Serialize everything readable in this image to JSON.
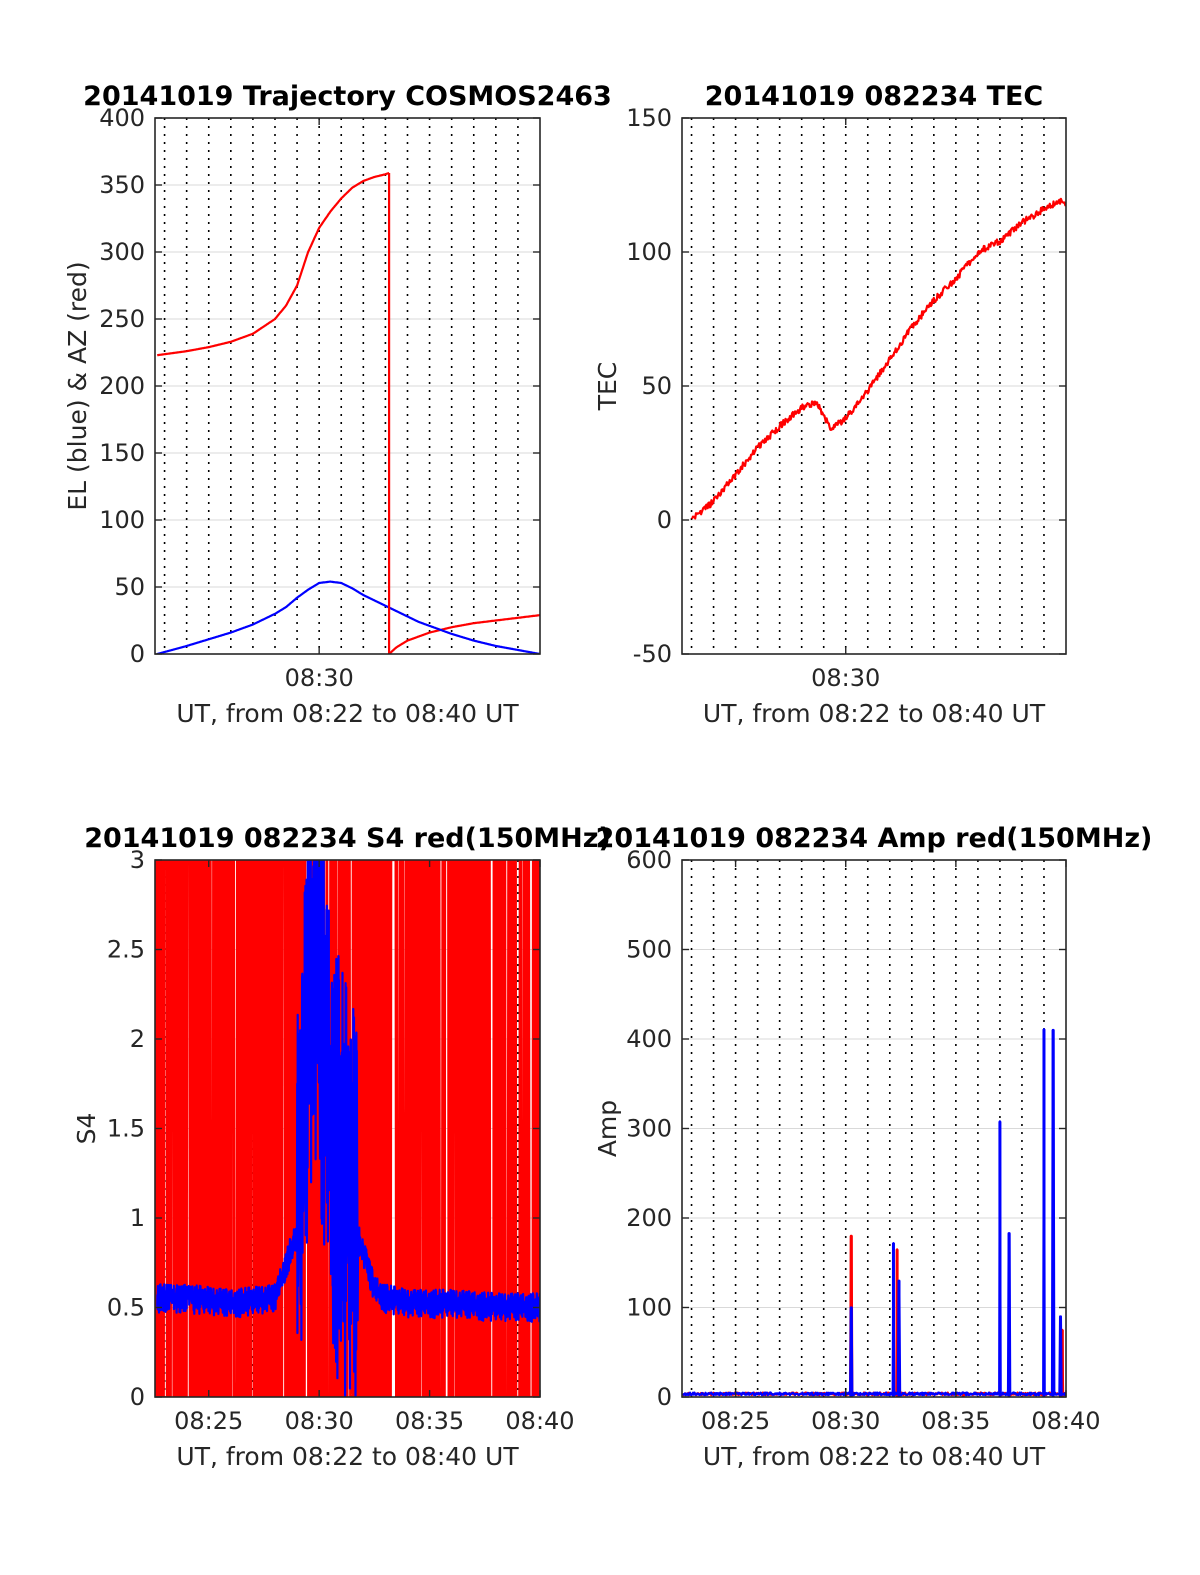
{
  "figure": {
    "colors": {
      "red": "#ff0000",
      "blue": "#0000ff",
      "grid": "#d9d9d9",
      "axis": "#262626"
    }
  },
  "chart_data": [
    {
      "id": "trajectory",
      "type": "line",
      "title": "20141019 Trajectory COSMOS2463",
      "xlabel": "UT, from 08:22 to 08:40 UT",
      "ylabel": "EL (blue) & AZ (red)",
      "xlim": [
        "08:22:34",
        "08:40:00"
      ],
      "ylim": [
        0,
        400
      ],
      "yticks": [
        0,
        50,
        100,
        150,
        200,
        250,
        300,
        350,
        400
      ],
      "xticks": [
        {
          "at": "08:30",
          "label": "08:30"
        }
      ],
      "grid": true,
      "series": [
        {
          "color": "red",
          "kind": "az",
          "x": [
            "08:22:40",
            "08:24:00",
            "08:25:00",
            "08:26:00",
            "08:27:00",
            "08:28:00",
            "08:28:30",
            "08:29:00",
            "08:29:30",
            "08:30:00",
            "08:30:30",
            "08:31:00",
            "08:31:30",
            "08:32:00",
            "08:32:30",
            "08:33:00",
            "08:33:10"
          ],
          "y": [
            223,
            226,
            229,
            233,
            239,
            250,
            260,
            275,
            300,
            318,
            330,
            340,
            348,
            353,
            356,
            358,
            359
          ]
        },
        {
          "color": "red",
          "kind": "az",
          "x": [
            "08:33:10",
            "08:33:30",
            "08:34:00",
            "08:34:30",
            "08:35:00",
            "08:35:30",
            "08:36:00",
            "08:37:00",
            "08:38:00",
            "08:39:00",
            "08:40:00"
          ],
          "y": [
            0,
            5,
            10,
            13,
            16,
            18,
            20,
            23,
            25,
            27,
            29
          ]
        },
        {
          "color": "blue",
          "kind": "el",
          "x": [
            "08:22:40",
            "08:24:00",
            "08:25:00",
            "08:26:00",
            "08:27:00",
            "08:28:00",
            "08:28:30",
            "08:29:00",
            "08:29:30",
            "08:30:00",
            "08:30:30",
            "08:31:00",
            "08:31:30",
            "08:32:00",
            "08:32:30",
            "08:33:00",
            "08:33:30",
            "08:34:00",
            "08:34:30",
            "08:35:00",
            "08:35:30",
            "08:36:00",
            "08:37:00",
            "08:38:00",
            "08:39:00",
            "08:40:00"
          ],
          "y": [
            0,
            6,
            11,
            16,
            22,
            30,
            35,
            42,
            48,
            53,
            54,
            53,
            49,
            44,
            40,
            36,
            32,
            28,
            24,
            21,
            18,
            15,
            10,
            6,
            3,
            0
          ]
        }
      ]
    },
    {
      "id": "tec",
      "type": "line",
      "title": "20141019 082234 TEC",
      "xlabel": "UT, from 08:22 to 08:40 UT",
      "ylabel": "TEC",
      "xlim": [
        "08:22:34",
        "08:40:00"
      ],
      "ylim": [
        -50,
        150
      ],
      "yticks": [
        -50,
        0,
        50,
        100,
        150
      ],
      "xticks": [
        {
          "at": "08:30",
          "label": "08:30"
        }
      ],
      "grid": true,
      "series": [
        {
          "color": "red",
          "x": [
            "08:23:00",
            "08:24:00",
            "08:25:00",
            "08:26:00",
            "08:27:00",
            "08:28:00",
            "08:28:40",
            "08:29:20",
            "08:30:00",
            "08:31:00",
            "08:32:00",
            "08:33:00",
            "08:34:00",
            "08:35:00",
            "08:36:00",
            "08:37:00",
            "08:38:00",
            "08:39:00",
            "08:39:45",
            "08:40:00"
          ],
          "y": [
            0,
            7,
            17,
            27,
            35,
            42,
            44,
            34,
            38,
            48,
            60,
            72,
            82,
            90,
            100,
            104,
            111,
            116,
            119,
            117
          ]
        }
      ]
    },
    {
      "id": "s4",
      "type": "line",
      "title": "20141019 082234 S4 red(150MHz)",
      "xlabel": "UT, from 08:22 to 08:40 UT",
      "ylabel": "S4",
      "xlim": [
        "08:22:34",
        "08:40:00"
      ],
      "ylim": [
        0,
        3
      ],
      "yticks": [
        0,
        0.5,
        1,
        1.5,
        2,
        2.5,
        3
      ],
      "xticks": [
        {
          "at": "08:25",
          "label": "08:25"
        },
        {
          "at": "08:30",
          "label": "08:30"
        },
        {
          "at": "08:35",
          "label": "08:35"
        },
        {
          "at": "08:40",
          "label": "08:40"
        }
      ],
      "grid": true,
      "series": [
        {
          "color": "red",
          "kind": "noisy",
          "baseline": 1.5,
          "range": [
            0,
            3
          ]
        },
        {
          "color": "blue",
          "kind": "noisy",
          "x": [
            "08:22:40",
            "08:24:00",
            "08:26:00",
            "08:28:00",
            "08:28:40",
            "08:29:00",
            "08:29:20",
            "08:29:40",
            "08:30:00",
            "08:30:30",
            "08:31:00",
            "08:31:30",
            "08:32:00",
            "08:32:30",
            "08:33:00",
            "08:34:00",
            "08:36:00",
            "08:38:00",
            "08:40:00"
          ],
          "y": [
            0.55,
            0.55,
            0.52,
            0.55,
            0.8,
            0.9,
            1.6,
            2.4,
            2.2,
            1.5,
            1.2,
            1.0,
            0.8,
            0.6,
            0.55,
            0.52,
            0.52,
            0.5,
            0.5
          ]
        }
      ]
    },
    {
      "id": "amp",
      "type": "line",
      "title": "20141019 082234 Amp red(150MHz)",
      "xlabel": "UT, from 08:22 to 08:40 UT",
      "ylabel": "Amp",
      "xlim": [
        "08:22:34",
        "08:40:00"
      ],
      "ylim": [
        0,
        600
      ],
      "yticks": [
        0,
        100,
        200,
        300,
        400,
        500,
        600
      ],
      "xticks": [
        {
          "at": "08:25",
          "label": "08:25"
        },
        {
          "at": "08:30",
          "label": "08:30"
        },
        {
          "at": "08:35",
          "label": "08:35"
        },
        {
          "at": "08:40",
          "label": "08:40"
        }
      ],
      "grid": true,
      "series": [
        {
          "color": "red",
          "spikes": [
            {
              "t": "08:30:15",
              "v": 180
            },
            {
              "t": "08:32:20",
              "v": 165
            },
            {
              "t": "08:35:20",
              "v": 5
            },
            {
              "t": "08:39:50",
              "v": 75
            }
          ]
        },
        {
          "color": "blue",
          "spikes": [
            {
              "t": "08:30:15",
              "v": 100
            },
            {
              "t": "08:32:10",
              "v": 172
            },
            {
              "t": "08:32:25",
              "v": 130
            },
            {
              "t": "08:37:00",
              "v": 308
            },
            {
              "t": "08:37:25",
              "v": 183
            },
            {
              "t": "08:39:00",
              "v": 411
            },
            {
              "t": "08:39:25",
              "v": 410
            },
            {
              "t": "08:39:45",
              "v": 90
            }
          ]
        }
      ]
    }
  ]
}
